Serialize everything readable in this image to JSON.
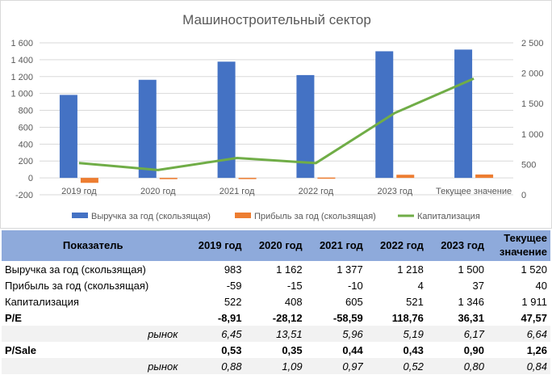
{
  "chart_data": {
    "type": "bar",
    "title": "Машиностроительный сектор",
    "categories": [
      "2019 год",
      "2020 год",
      "2021 год",
      "2022 год",
      "2023 год",
      "Текущее значение"
    ],
    "series": [
      {
        "name": "Выручка за год (скользящая)",
        "type": "bar",
        "axis": "left",
        "color": "#4472c4",
        "values": [
          983,
          1162,
          1377,
          1218,
          1500,
          1520
        ]
      },
      {
        "name": "Прибыль за год (скользящая)",
        "type": "bar",
        "axis": "left",
        "color": "#ed7d31",
        "values": [
          -59,
          -15,
          -10,
          4,
          37,
          40
        ]
      },
      {
        "name": "Капитализация",
        "type": "line",
        "axis": "right",
        "color": "#70ad47",
        "values": [
          522,
          408,
          605,
          521,
          1346,
          1911
        ]
      }
    ],
    "left_axis": {
      "ylim": [
        -200,
        1600
      ],
      "ticks": [
        "-200",
        "0",
        "200",
        "400",
        "600",
        "800",
        "1 000",
        "1 200",
        "1 400",
        "1 600"
      ]
    },
    "right_axis": {
      "ylim": [
        0,
        2500
      ],
      "ticks": [
        "0",
        "500",
        "1 000",
        "1 500",
        "2 000",
        "2 500"
      ]
    },
    "grid": true,
    "legend": "bottom"
  },
  "table": {
    "headers": [
      "Показатель",
      "2019 год",
      "2020 год",
      "2021 год",
      "2022 год",
      "2023 год",
      "Текущее значение"
    ],
    "rows": [
      {
        "style": "normal",
        "cells": [
          "Выручка за год (скользящая)",
          "983",
          "1 162",
          "1 377",
          "1 218",
          "1 500",
          "1 520"
        ]
      },
      {
        "style": "normal",
        "cells": [
          "Прибыль за год (скользящая)",
          "-59",
          "-15",
          "-10",
          "4",
          "37",
          "40"
        ]
      },
      {
        "style": "normal",
        "cells": [
          "Капитализация",
          "522",
          "408",
          "605",
          "521",
          "1 346",
          "1 911"
        ]
      },
      {
        "style": "bold",
        "cells": [
          "P/E",
          "-8,91",
          "-28,12",
          "-58,59",
          "118,76",
          "36,31",
          "47,57"
        ]
      },
      {
        "style": "mkt",
        "cells": [
          "рынок",
          "6,45",
          "13,51",
          "5,96",
          "5,19",
          "6,17",
          "6,64"
        ]
      },
      {
        "style": "bold",
        "cells": [
          "P/Sale",
          "0,53",
          "0,35",
          "0,44",
          "0,43",
          "0,90",
          "1,26"
        ]
      },
      {
        "style": "mkt",
        "cells": [
          "рынок",
          "0,88",
          "1,09",
          "0,97",
          "0,52",
          "0,80",
          "0,84"
        ]
      }
    ]
  }
}
